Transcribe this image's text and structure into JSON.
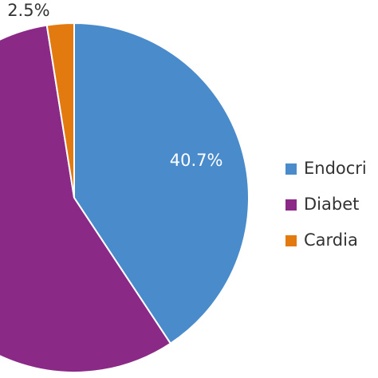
{
  "chart_data": {
    "type": "pie",
    "categories": [
      "Endocri",
      "Diabet",
      "Cardia"
    ],
    "values": [
      40.7,
      56.8,
      2.5
    ],
    "value_labels": [
      "40.7%",
      null,
      "2.5%"
    ],
    "colors": [
      "#4a8bcb",
      "#8b2a86",
      "#e27a10"
    ]
  }
}
